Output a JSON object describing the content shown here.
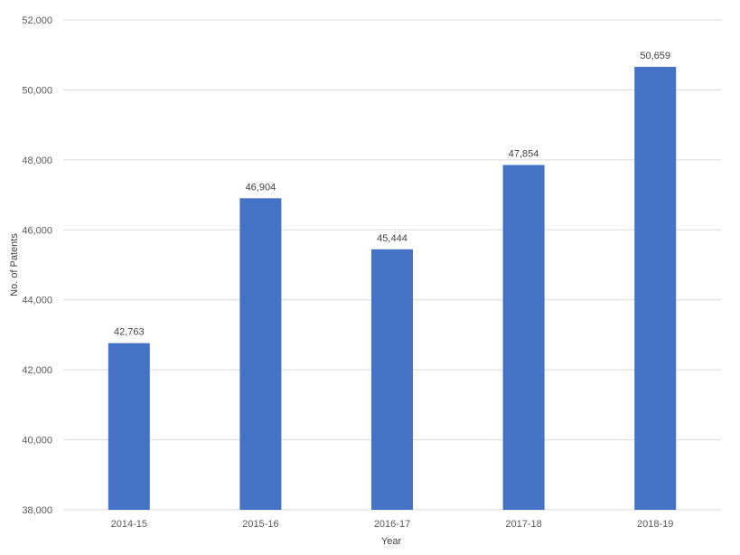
{
  "chart_data": {
    "type": "bar",
    "categories": [
      "2014-15",
      "2015-16",
      "2016-17",
      "2017-18",
      "2018-19"
    ],
    "values": [
      42763,
      46904,
      45444,
      47854,
      50659
    ],
    "data_labels": [
      "42,763",
      "46,904",
      "45,444",
      "47,854",
      "50,659"
    ],
    "xlabel": "Year",
    "ylabel": "No. of Patents",
    "ylim": [
      38000,
      52000
    ],
    "y_ticks": [
      38000,
      40000,
      42000,
      44000,
      46000,
      48000,
      50000,
      52000
    ],
    "y_tick_labels": [
      "38,000",
      "40,000",
      "42,000",
      "44,000",
      "46,000",
      "48,000",
      "50,000",
      "52,000"
    ],
    "grid": true,
    "bar_color": "#4472C4",
    "grid_color": "#D9D9D9"
  }
}
